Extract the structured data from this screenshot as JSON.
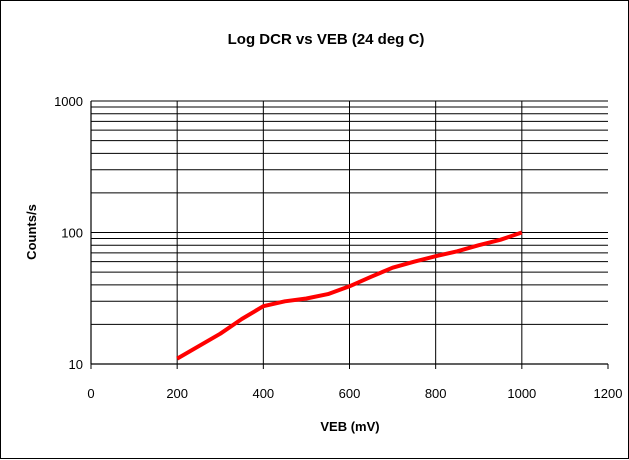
{
  "chart_data": {
    "type": "line",
    "title": "Log DCR vs VEB (24 deg C)",
    "xlabel": "VEB (mV)",
    "ylabel": "Counts/s",
    "xlim": [
      0,
      1200
    ],
    "ylim": [
      10,
      1000
    ],
    "yscale": "log",
    "grid": true,
    "x_ticks": [
      "0",
      "200",
      "400",
      "600",
      "800",
      "1000",
      "1200"
    ],
    "y_ticks": [
      "10",
      "100",
      "1000"
    ],
    "series": [
      {
        "color": "#ff0000",
        "x": [
          200,
          300,
          350,
          400,
          450,
          500,
          550,
          600,
          650,
          700,
          750,
          800,
          850,
          900,
          950,
          1000
        ],
        "y": [
          11,
          17,
          22,
          27.5,
          30,
          31.5,
          34,
          39,
          46,
          54,
          60,
          66,
          72,
          80,
          88,
          100
        ]
      }
    ]
  }
}
